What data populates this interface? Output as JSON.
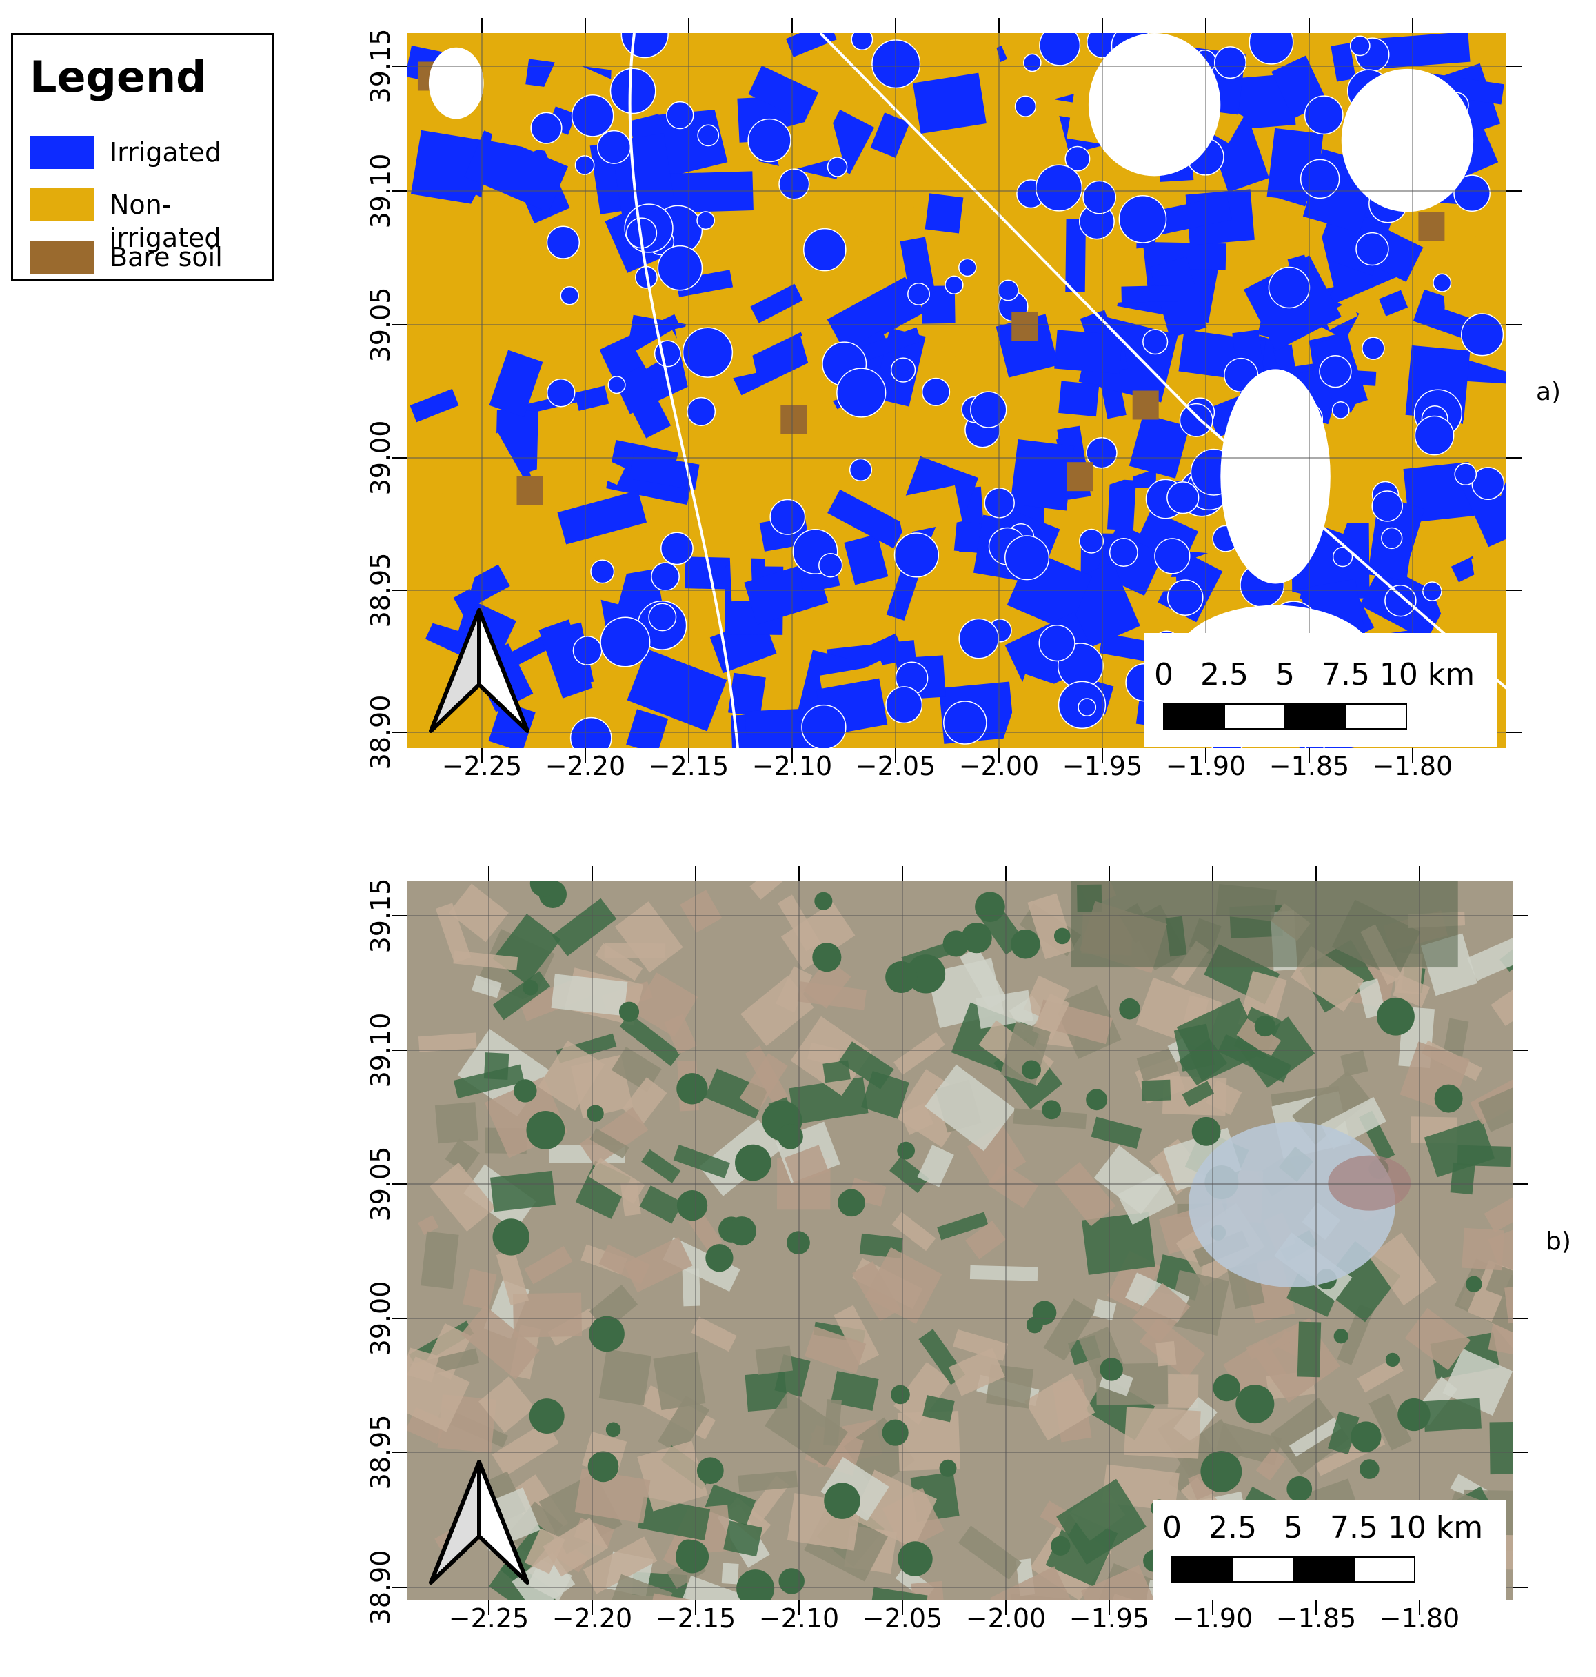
{
  "legend": {
    "title": "Legend",
    "items": [
      {
        "label": "Irrigated",
        "color": "#0d2bff"
      },
      {
        "label": "Non-irrigated",
        "color": "#e3ac0c"
      },
      {
        "label": "Bare soil",
        "color": "#9a6a2e"
      }
    ]
  },
  "panels": [
    {
      "label": "a)",
      "kind": "classification",
      "lon_ticks": [
        "−2.25",
        "−2.20",
        "−2.15",
        "−2.10",
        "−2.05",
        "−2.00",
        "−1.95",
        "−1.90",
        "−1.85",
        "−1.80"
      ],
      "lat_ticks": [
        "39.15",
        "39.10",
        "39.05",
        "39.00",
        "38.95",
        "38.90"
      ],
      "scale_labels": [
        "0",
        "2.5",
        "5",
        "7.5",
        "10 km"
      ]
    },
    {
      "label": "b)",
      "kind": "satellite",
      "lon_ticks": [
        "−2.25",
        "−2.20",
        "−2.15",
        "−2.10",
        "−2.05",
        "−2.00",
        "−1.95",
        "−1.90",
        "−1.85",
        "−1.80"
      ],
      "lat_ticks": [
        "39.15",
        "39.10",
        "39.05",
        "39.00",
        "38.95",
        "38.90"
      ],
      "scale_labels": [
        "0",
        "2.5",
        "5",
        "7.5",
        "10 km"
      ]
    }
  ],
  "colors": {
    "irrigated": "#0d2bff",
    "non_irrigated": "#e3ac0c",
    "bare_soil": "#9a6a2e",
    "satellite_base": "#a49a86",
    "satellite_green": "#3d6b45",
    "satellite_urban": "#b9c8d6"
  }
}
